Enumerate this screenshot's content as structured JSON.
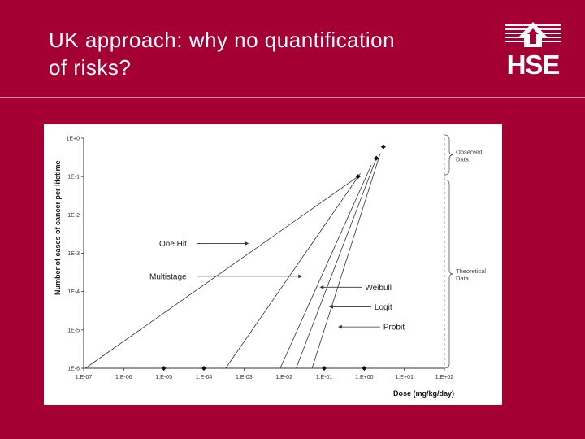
{
  "slide": {
    "title_line1": "UK approach: why no quantification",
    "title_line2": "of risks?",
    "logo_text": "HSE",
    "logo_icon": "hse-house-logo-icon"
  },
  "chart_data": {
    "type": "line",
    "xlabel": "Dose (mg/kg/day)",
    "ylabel": "Number of cases of cancer per lifetime",
    "x_scale": "log",
    "y_scale": "log",
    "xlim": [
      1e-07,
      100
    ],
    "ylim": [
      1e-06,
      1
    ],
    "x_tick_values": [
      1e-07,
      1e-06,
      1e-05,
      0.0001,
      0.001,
      0.01,
      0.1,
      1,
      10,
      100
    ],
    "x_tick_labels": [
      "1.E-07",
      "1.E-06",
      "1.E-05",
      "1.E-04",
      "1.E-03",
      "1.E-02",
      "1.E-01",
      "1.E+00",
      "1.E+01",
      "1.E+02"
    ],
    "y_tick_values": [
      1,
      0.1,
      0.01,
      0.001,
      0.0001,
      1e-05,
      1e-06
    ],
    "y_tick_labels": [
      "1E+0",
      "1E-1",
      "1E-2",
      "1E-3",
      "1E-4",
      "1E-5",
      "1E-6"
    ],
    "grid": false,
    "series": [
      {
        "name": "One Hit",
        "x": [
          1.1e-07,
          0.7
        ],
        "y": [
          1e-06,
          0.1
        ]
      },
      {
        "name": "Multistage",
        "x": [
          0.00035,
          0.8
        ],
        "y": [
          1e-06,
          0.12
        ]
      },
      {
        "name": "Weibull",
        "x": [
          0.008,
          1.5
        ],
        "y": [
          1e-06,
          0.2
        ]
      },
      {
        "name": "Logit",
        "x": [
          0.02,
          2.0
        ],
        "y": [
          1e-06,
          0.3
        ]
      },
      {
        "name": "Probit",
        "x": [
          0.05,
          2.5
        ],
        "y": [
          1e-06,
          0.4
        ]
      }
    ],
    "observed_points": {
      "x": [
        3,
        2,
        0.7
      ],
      "y": [
        0.6,
        0.3,
        0.1
      ]
    },
    "axis_points": {
      "x": [
        1e-05,
        0.0001,
        0.1,
        1
      ],
      "y": [
        1e-06,
        1e-06,
        1e-06,
        1e-06
      ]
    },
    "annotations": [
      {
        "text": "One Hit",
        "target": "One Hit",
        "at_dose": 0.0014,
        "at_cases": 0.0018
      },
      {
        "text": "Multistage",
        "target": "Multistage",
        "at_dose": 0.03,
        "at_cases": 0.00025
      },
      {
        "text": "Weibull",
        "target": "Weibull",
        "at_dose": 0.07,
        "at_cases": 0.00013
      },
      {
        "text": "Logit",
        "target": "Logit",
        "at_dose": 0.12,
        "at_cases": 4e-05
      },
      {
        "text": "Probit",
        "target": "Probit",
        "at_dose": 0.2,
        "at_cases": 1.2e-05
      }
    ],
    "braces": [
      {
        "label_line1": "Observed",
        "label_line2": "Data",
        "from_cases": 1,
        "to_cases": 0.1
      },
      {
        "label_line1": "Theoretical",
        "label_line2": "Data",
        "from_cases": 0.1,
        "to_cases": 1e-06
      }
    ]
  }
}
